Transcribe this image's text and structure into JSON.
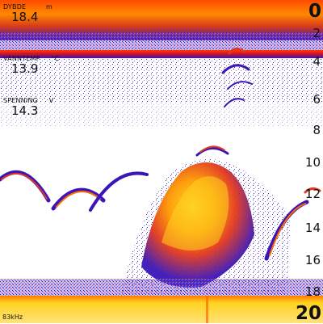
{
  "readouts": {
    "depth": {
      "label": "DYBDE",
      "unit": "m",
      "value": "18.4"
    },
    "water_temp": {
      "label": "VANNTEMP",
      "unit": "°C",
      "value": "13.9"
    },
    "voltage": {
      "label": "SPENNING",
      "unit": "V",
      "value": "14.3"
    }
  },
  "depth_scale": {
    "range_top": "0",
    "range_bottom": "20",
    "ticks": [
      "2",
      "4",
      "6",
      "8",
      "10",
      "12",
      "14",
      "16",
      "18"
    ]
  },
  "frequency": "83kHz",
  "colors": {
    "strong": "#ffd21f",
    "medium": "#ff6a00",
    "weak": "#3a16b8",
    "faint": "#7a5cff",
    "background": "#ffffff"
  }
}
